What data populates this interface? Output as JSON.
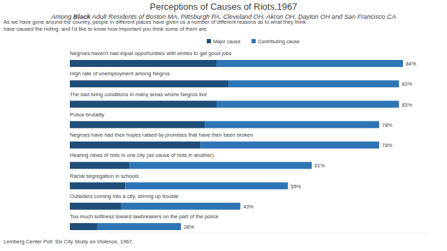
{
  "chart_data": {
    "type": "bar",
    "orientation": "horizontal",
    "stacked": true,
    "title": "Perceptions of Causes of Riots,1967",
    "subtitle": "Among Black Adult Residents of Boston MA, Pittsburgh PA, Cleveland OH, Akron OH, Dayton OH and San Francisco CA",
    "question": "As we have gone around the country, people in different places have given us a number of different reasons as to what they think have caused the rioting, and I'd like to know how important you think some of them are.",
    "source": "Lemberg Center Poll: Six City Study on Violence, 1967.",
    "categories": [
      "Negroes haven't had equal opportunities  with whites to get good jobs",
      "High rate of unemployment among Negros",
      "The bad living conditions in many areas where Negros live",
      "Police brutality",
      "Negroes have had their hopes raised by promises that have then been broken",
      "Hearing news of riots in one city (as cause of riots in another)",
      "Racial segregation in schools",
      "Outsiders coming into a city, stirring up trouble",
      "Too much softness toward lawbreakers on the part of the police"
    ],
    "series": [
      {
        "name": "Major cause",
        "color": "#1f4e79",
        "values": [
          37,
          40,
          37,
          34,
          33,
          15,
          14,
          13,
          7
        ]
      },
      {
        "name": "Contributing cause",
        "color": "#2e75b6",
        "values": [
          47,
          43,
          46,
          44,
          45,
          46,
          41,
          30,
          21
        ]
      }
    ],
    "totals": [
      84,
      83,
      83,
      78,
      78,
      61,
      55,
      43,
      28
    ],
    "total_labels": [
      "84%",
      "83%",
      "83%",
      "78%",
      "78%",
      "61%",
      "55%",
      "43%",
      "28%"
    ],
    "data_labels": true,
    "xlim": [
      0,
      90
    ],
    "tick_labels": false,
    "grid": false,
    "legend": "top"
  }
}
